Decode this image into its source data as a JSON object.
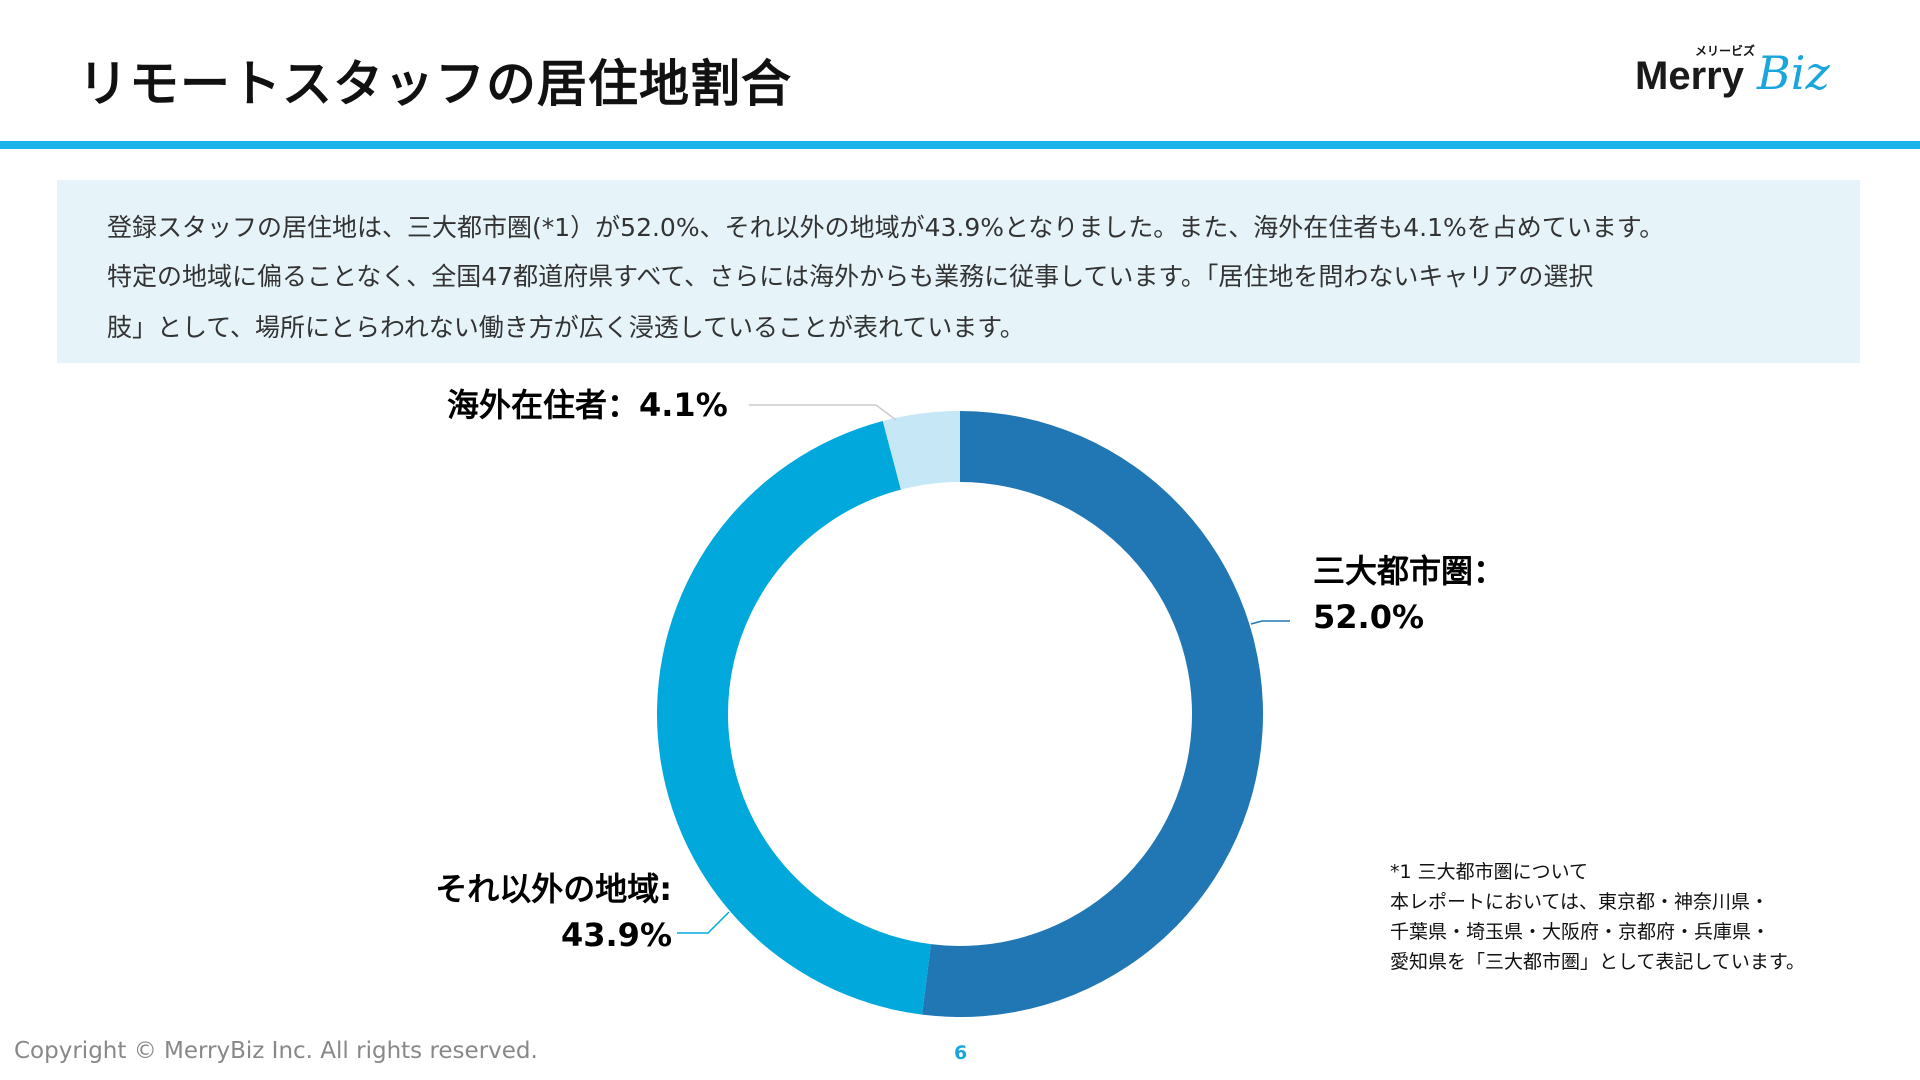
{
  "header": {
    "title": "リモートスタッフの居住地割合",
    "logo_text": "MerryBiz",
    "logo_kana": "メリービズ"
  },
  "summary": {
    "lines": [
      "登録スタッフの居住地は、三大都市圏(*1）が52.0%、それ以外の地域が43.9%となりました。また、海外在住者も4.1%を占めています。",
      "特定の地域に偏ることなく、全国47都道府県すべて、さらには海外からも業務に従事しています。「居住地を問わないキャリアの選択",
      "肢」として、場所にとらわれない働き方が広く浸透していることが表れています。"
    ]
  },
  "chart_data": {
    "type": "pie",
    "donut": true,
    "title": "リモートスタッフの居住地割合",
    "slices": [
      {
        "name": "三大都市圏",
        "label": "三大都市圏：",
        "value_label": "52.0%",
        "value": 52.0,
        "color": "#2077b4"
      },
      {
        "name": "それ以外の地域",
        "label": "それ以外の地域:",
        "value_label": "43.9%",
        "value": 43.9,
        "color": "#00a8dc"
      },
      {
        "name": "海外在住者",
        "label": "海外在住者：4.1%",
        "value_label": "",
        "value": 4.1,
        "color": "#c6e7f5"
      }
    ]
  },
  "footnote": {
    "lines": [
      "*1 三大都市圏について",
      "本レポートにおいては、東京都・神奈川県・",
      "千葉県・埼玉県・大阪府・京都府・兵庫県・",
      "愛知県を「三大都市圏」として表記しています。"
    ]
  },
  "footer": {
    "copyright": "Copyright © MerryBiz Inc. All rights reserved.",
    "page": "6"
  }
}
